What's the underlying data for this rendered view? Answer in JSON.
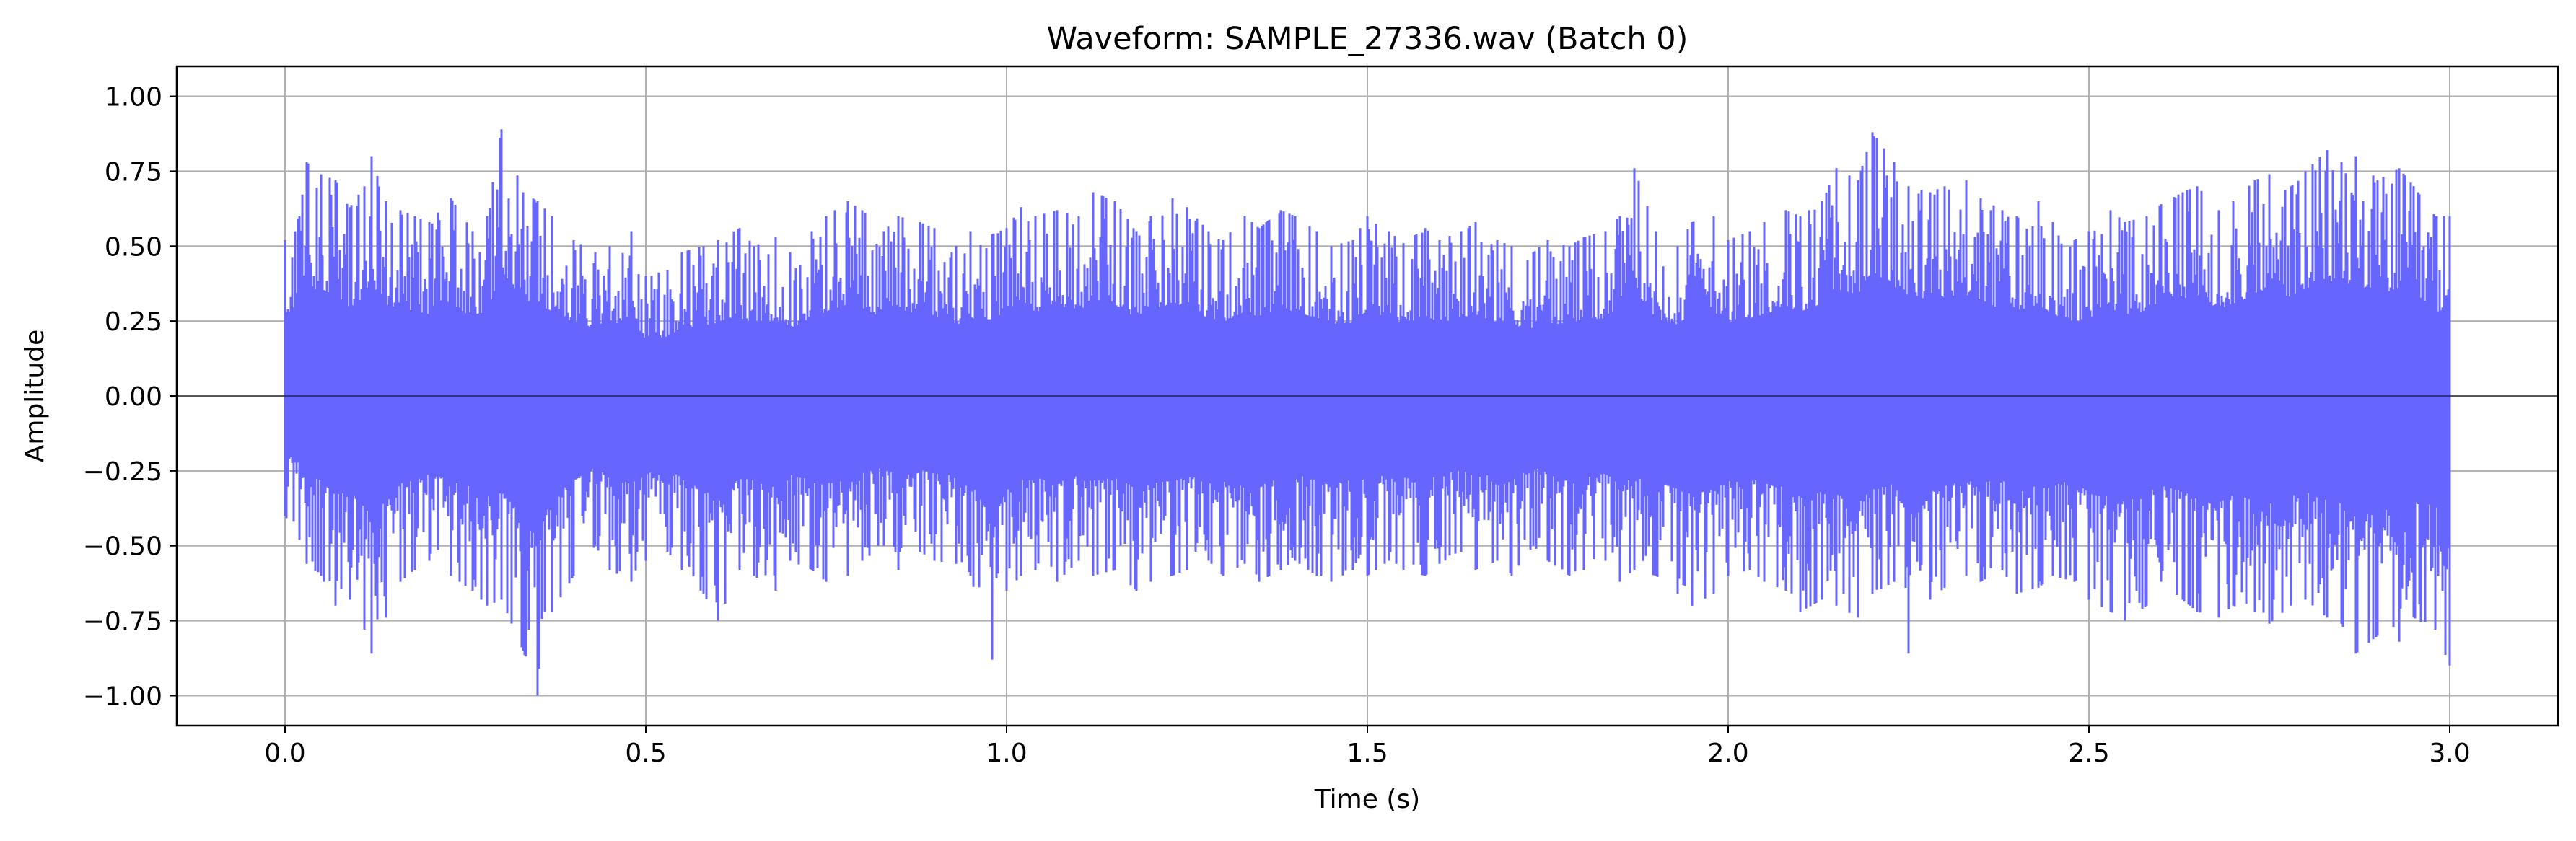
{
  "chart_data": {
    "type": "line",
    "title": "Waveform: SAMPLE_27336.wav (Batch 0)",
    "xlabel": "Time (s)",
    "ylabel": "Amplitude",
    "xlim": [
      -0.15,
      3.15
    ],
    "ylim": [
      -1.1,
      1.1
    ],
    "x_ticks": [
      0.0,
      0.5,
      1.0,
      1.5,
      2.0,
      2.5,
      3.0
    ],
    "x_tick_labels": [
      "0.0",
      "0.5",
      "1.0",
      "1.5",
      "2.0",
      "2.5",
      "3.0"
    ],
    "y_ticks": [
      1.0,
      0.75,
      0.5,
      0.25,
      0.0,
      -0.25,
      -0.5,
      -0.75,
      -1.0
    ],
    "y_tick_labels": [
      "1.00",
      "0.75",
      "0.50",
      "0.25",
      "0.00",
      "−0.25",
      "−0.50",
      "−0.75",
      "−1.00"
    ],
    "grid": true,
    "zero_line": 0.0,
    "series": [
      {
        "color": "#6666ff",
        "x": [
          0.0,
          0.02,
          0.03,
          0.05,
          0.07,
          0.09,
          0.11,
          0.12,
          0.14,
          0.16,
          0.18,
          0.2,
          0.23,
          0.26,
          0.28,
          0.3,
          0.33,
          0.35,
          0.37,
          0.4,
          0.43,
          0.45,
          0.48,
          0.5,
          0.53,
          0.55,
          0.58,
          0.6,
          0.63,
          0.65,
          0.68,
          0.7,
          0.73,
          0.75,
          0.78,
          0.8,
          0.83,
          0.85,
          0.88,
          0.9,
          0.93,
          0.95,
          0.98,
          1.0,
          1.02,
          1.04,
          1.07,
          1.1,
          1.12,
          1.15,
          1.18,
          1.2,
          1.23,
          1.25,
          1.28,
          1.3,
          1.33,
          1.35,
          1.38,
          1.4,
          1.43,
          1.45,
          1.48,
          1.5,
          1.53,
          1.55,
          1.58,
          1.6,
          1.63,
          1.65,
          1.68,
          1.7,
          1.73,
          1.75,
          1.78,
          1.8,
          1.83,
          1.85,
          1.87,
          1.9,
          1.93,
          1.95,
          1.98,
          2.0,
          2.03,
          2.05,
          2.08,
          2.1,
          2.13,
          2.15,
          2.18,
          2.2,
          2.23,
          2.25,
          2.28,
          2.3,
          2.33,
          2.35,
          2.38,
          2.4,
          2.43,
          2.45,
          2.48,
          2.5,
          2.53,
          2.55,
          2.58,
          2.6,
          2.63,
          2.65,
          2.68,
          2.7,
          2.73,
          2.75,
          2.78,
          2.8,
          2.83,
          2.85,
          2.87,
          2.9,
          2.93,
          2.95,
          2.98,
          3.0
        ],
        "y_max": [
          0.52,
          0.6,
          0.78,
          0.74,
          0.72,
          0.63,
          0.7,
          0.8,
          0.65,
          0.62,
          0.6,
          0.58,
          0.66,
          0.55,
          0.6,
          0.89,
          0.68,
          0.65,
          0.6,
          0.52,
          0.48,
          0.5,
          0.55,
          0.4,
          0.42,
          0.48,
          0.5,
          0.52,
          0.56,
          0.5,
          0.53,
          0.48,
          0.55,
          0.6,
          0.65,
          0.62,
          0.55,
          0.6,
          0.58,
          0.56,
          0.5,
          0.55,
          0.54,
          0.56,
          0.63,
          0.6,
          0.62,
          0.6,
          0.68,
          0.65,
          0.55,
          0.6,
          0.66,
          0.63,
          0.55,
          0.52,
          0.6,
          0.56,
          0.62,
          0.6,
          0.55,
          0.5,
          0.52,
          0.6,
          0.55,
          0.51,
          0.56,
          0.52,
          0.55,
          0.58,
          0.52,
          0.5,
          0.48,
          0.52,
          0.5,
          0.53,
          0.55,
          0.6,
          0.76,
          0.55,
          0.5,
          0.58,
          0.6,
          0.52,
          0.55,
          0.58,
          0.62,
          0.6,
          0.65,
          0.76,
          0.72,
          0.88,
          0.78,
          0.7,
          0.68,
          0.7,
          0.72,
          0.66,
          0.62,
          0.6,
          0.65,
          0.58,
          0.52,
          0.55,
          0.62,
          0.58,
          0.6,
          0.64,
          0.68,
          0.7,
          0.62,
          0.65,
          0.72,
          0.74,
          0.7,
          0.75,
          0.82,
          0.78,
          0.8,
          0.72,
          0.76,
          0.7,
          0.6,
          0.6
        ],
        "y_min": [
          -0.4,
          -0.48,
          -0.56,
          -0.6,
          -0.7,
          -0.68,
          -0.78,
          -0.86,
          -0.74,
          -0.62,
          -0.58,
          -0.55,
          -0.6,
          -0.65,
          -0.7,
          -0.68,
          -0.85,
          -1.0,
          -0.72,
          -0.6,
          -0.5,
          -0.58,
          -0.62,
          -0.55,
          -0.52,
          -0.58,
          -0.66,
          -0.75,
          -0.58,
          -0.6,
          -0.65,
          -0.55,
          -0.58,
          -0.62,
          -0.6,
          -0.55,
          -0.5,
          -0.58,
          -0.52,
          -0.55,
          -0.56,
          -0.6,
          -0.88,
          -0.65,
          -0.6,
          -0.58,
          -0.62,
          -0.55,
          -0.6,
          -0.58,
          -0.65,
          -0.62,
          -0.6,
          -0.58,
          -0.55,
          -0.6,
          -0.56,
          -0.62,
          -0.58,
          -0.55,
          -0.6,
          -0.62,
          -0.58,
          -0.6,
          -0.55,
          -0.58,
          -0.6,
          -0.56,
          -0.52,
          -0.58,
          -0.55,
          -0.6,
          -0.5,
          -0.55,
          -0.6,
          -0.58,
          -0.55,
          -0.62,
          -0.58,
          -0.6,
          -0.66,
          -0.7,
          -0.66,
          -0.6,
          -0.58,
          -0.62,
          -0.65,
          -0.72,
          -0.68,
          -0.7,
          -0.74,
          -0.66,
          -0.62,
          -0.86,
          -0.68,
          -0.64,
          -0.6,
          -0.62,
          -0.58,
          -0.66,
          -0.64,
          -0.6,
          -0.62,
          -0.68,
          -0.72,
          -0.75,
          -0.7,
          -0.62,
          -0.68,
          -0.72,
          -0.74,
          -0.7,
          -0.72,
          -0.76,
          -0.7,
          -0.68,
          -0.74,
          -0.76,
          -0.86,
          -0.8,
          -0.82,
          -0.74,
          -0.78,
          -0.9
        ]
      }
    ]
  }
}
